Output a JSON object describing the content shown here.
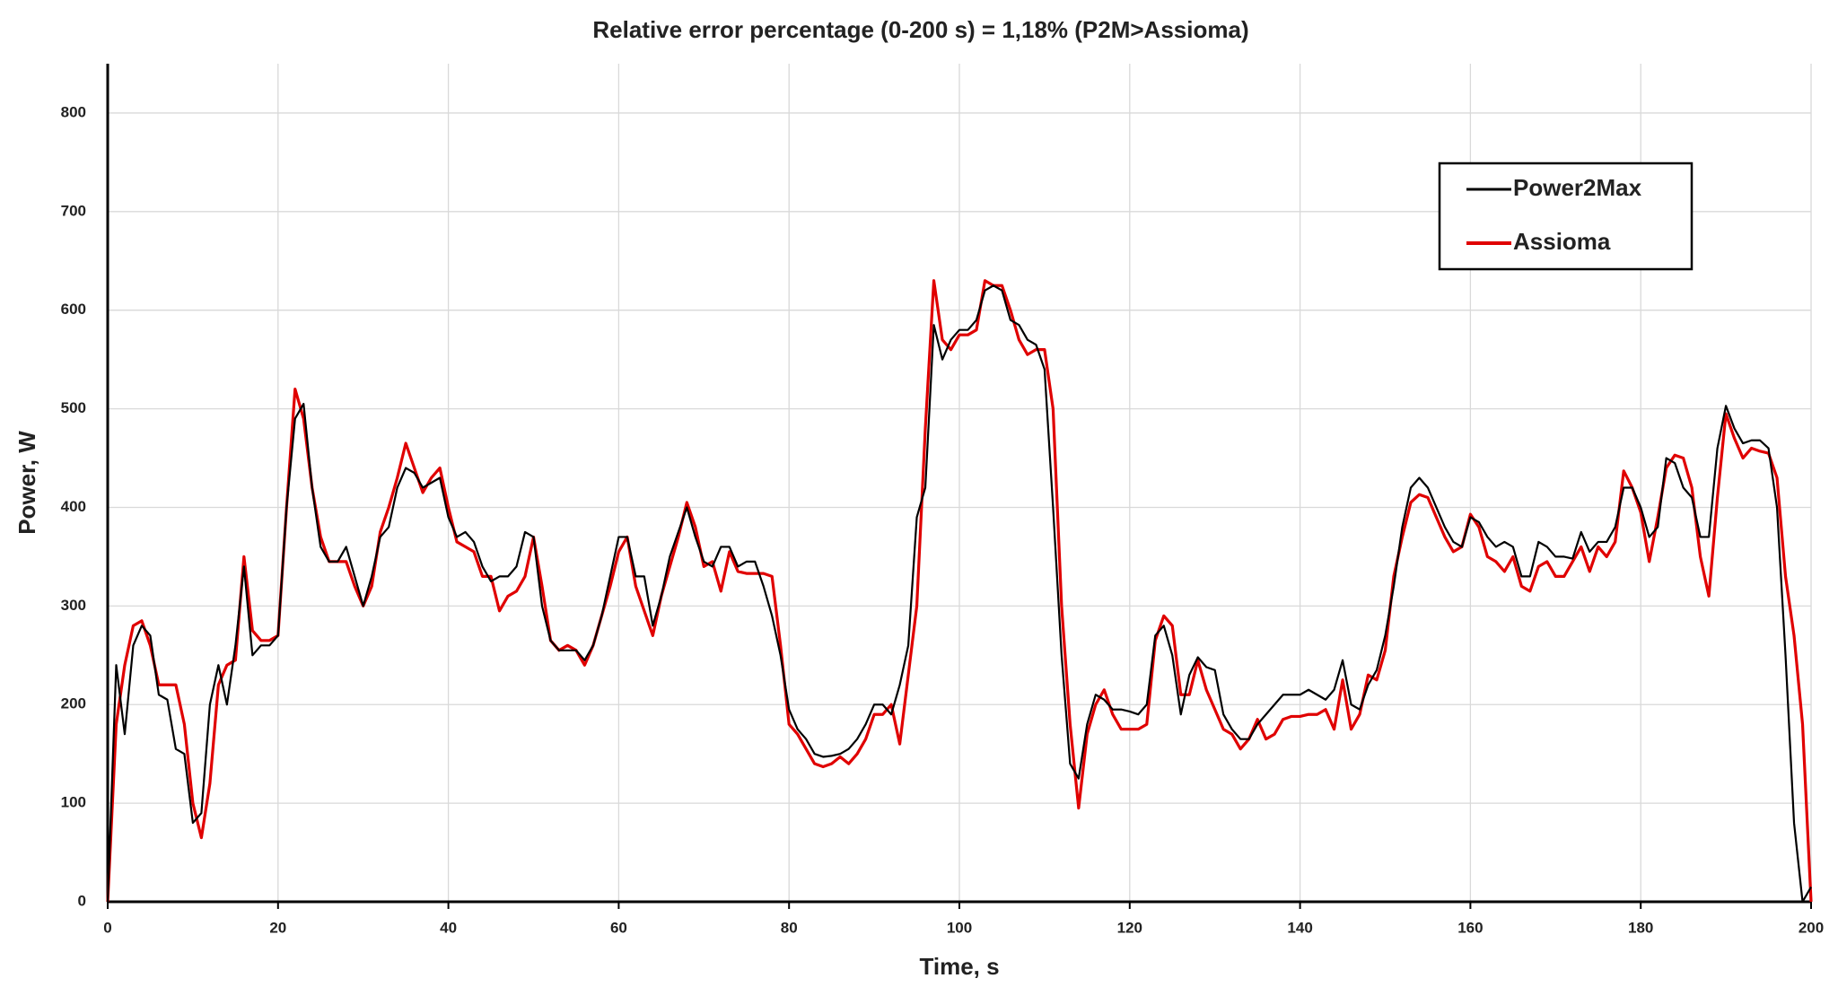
{
  "chart_data": {
    "type": "line",
    "title": "Relative error percentage (0-200 s) = 1,18% (P2M>Assioma)",
    "xlabel": "Time, s",
    "ylabel": "Power, W",
    "xlim": [
      0,
      200
    ],
    "xticks": [
      0,
      20,
      40,
      60,
      80,
      100,
      120,
      140,
      160,
      180,
      200
    ],
    "ylim": [
      0,
      850
    ],
    "yticks": [
      0,
      100,
      200,
      300,
      400,
      500,
      600,
      700,
      800
    ],
    "grid": true,
    "legend": "upper right",
    "x": [
      0,
      1,
      2,
      3,
      4,
      5,
      6,
      7,
      8,
      9,
      10,
      11,
      12,
      13,
      14,
      15,
      16,
      17,
      18,
      19,
      20,
      21,
      22,
      23,
      24,
      25,
      26,
      27,
      28,
      29,
      30,
      31,
      32,
      33,
      34,
      35,
      36,
      37,
      38,
      39,
      40,
      41,
      42,
      43,
      44,
      45,
      46,
      47,
      48,
      49,
      50,
      51,
      52,
      53,
      54,
      55,
      56,
      57,
      58,
      59,
      60,
      61,
      62,
      63,
      64,
      65,
      66,
      67,
      68,
      69,
      70,
      71,
      72,
      73,
      74,
      75,
      76,
      77,
      78,
      79,
      80,
      81,
      82,
      83,
      84,
      85,
      86,
      87,
      88,
      89,
      90,
      91,
      92,
      93,
      94,
      95,
      96,
      97,
      98,
      99,
      100,
      101,
      102,
      103,
      104,
      105,
      106,
      107,
      108,
      109,
      110,
      111,
      112,
      113,
      114,
      115,
      116,
      117,
      118,
      119,
      120,
      121,
      122,
      123,
      124,
      125,
      126,
      127,
      128,
      129,
      130,
      131,
      132,
      133,
      134,
      135,
      136,
      137,
      138,
      139,
      140,
      141,
      142,
      143,
      144,
      145,
      146,
      147,
      148,
      149,
      150,
      151,
      152,
      153,
      154,
      155,
      156,
      157,
      158,
      159,
      160,
      161,
      162,
      163,
      164,
      165,
      166,
      167,
      168,
      169,
      170,
      171,
      172,
      173,
      174,
      175,
      176,
      177,
      178,
      179,
      180,
      181,
      182,
      183,
      184,
      185,
      186,
      187,
      188,
      189,
      190,
      191,
      192,
      193,
      194,
      195,
      196,
      197,
      198,
      199,
      200
    ],
    "series": [
      {
        "name": "Power2Max",
        "color": "#000000",
        "values": [
          0,
          240,
          170,
          260,
          280,
          270,
          210,
          205,
          155,
          150,
          80,
          90,
          200,
          240,
          200,
          260,
          340,
          250,
          260,
          260,
          270,
          400,
          490,
          505,
          420,
          360,
          345,
          345,
          360,
          330,
          300,
          330,
          370,
          380,
          420,
          440,
          435,
          420,
          425,
          430,
          390,
          370,
          375,
          365,
          340,
          325,
          330,
          330,
          340,
          375,
          370,
          300,
          265,
          255,
          255,
          255,
          245,
          260,
          290,
          330,
          370,
          370,
          330,
          330,
          280,
          310,
          350,
          375,
          400,
          370,
          345,
          340,
          360,
          360,
          340,
          345,
          345,
          320,
          290,
          250,
          195,
          175,
          165,
          150,
          147,
          148,
          150,
          155,
          165,
          180,
          200,
          200,
          190,
          220,
          260,
          390,
          420,
          585,
          550,
          570,
          580,
          580,
          590,
          620,
          625,
          620,
          590,
          585,
          570,
          565,
          540,
          400,
          250,
          140,
          125,
          180,
          210,
          205,
          195,
          195,
          193,
          190,
          200,
          270,
          280,
          250,
          190,
          230,
          248,
          238,
          235,
          190,
          175,
          165,
          165,
          180,
          190,
          200,
          210,
          210,
          210,
          215,
          210,
          205,
          215,
          245,
          200,
          195,
          220,
          235,
          270,
          320,
          380,
          420,
          430,
          420,
          400,
          380,
          365,
          360,
          390,
          385,
          370,
          360,
          365,
          360,
          330,
          330,
          365,
          360,
          350,
          350,
          348,
          375,
          355,
          365,
          365,
          380,
          420,
          420,
          400,
          370,
          380,
          450,
          445,
          420,
          410,
          370,
          370,
          460,
          503,
          480,
          465,
          468,
          468,
          460,
          400,
          250,
          80,
          0,
          15
        ]
      },
      {
        "name": "Assioma",
        "color": "#e00000",
        "values": [
          0,
          180,
          240,
          280,
          285,
          260,
          220,
          220,
          220,
          180,
          100,
          65,
          120,
          220,
          240,
          245,
          350,
          275,
          265,
          265,
          270,
          400,
          520,
          490,
          420,
          370,
          345,
          345,
          345,
          320,
          300,
          320,
          375,
          400,
          430,
          465,
          440,
          415,
          430,
          440,
          400,
          365,
          360,
          355,
          330,
          330,
          295,
          310,
          315,
          330,
          370,
          320,
          265,
          255,
          260,
          255,
          240,
          260,
          290,
          320,
          355,
          370,
          320,
          295,
          270,
          310,
          340,
          370,
          405,
          380,
          340,
          345,
          315,
          355,
          335,
          333,
          333,
          333,
          330,
          260,
          180,
          170,
          155,
          140,
          137,
          140,
          147,
          140,
          150,
          165,
          190,
          190,
          200,
          160,
          230,
          300,
          480,
          630,
          570,
          560,
          575,
          575,
          580,
          630,
          625,
          625,
          600,
          570,
          555,
          560,
          560,
          500,
          300,
          180,
          95,
          170,
          200,
          215,
          190,
          175,
          175,
          175,
          180,
          265,
          290,
          280,
          210,
          210,
          245,
          215,
          195,
          175,
          170,
          155,
          165,
          185,
          165,
          170,
          185,
          188,
          188,
          190,
          190,
          195,
          175,
          225,
          175,
          190,
          230,
          225,
          255,
          330,
          370,
          405,
          413,
          410,
          390,
          370,
          355,
          360,
          393,
          380,
          350,
          345,
          335,
          350,
          320,
          315,
          340,
          345,
          330,
          330,
          345,
          360,
          335,
          360,
          350,
          365,
          437,
          420,
          395,
          345,
          390,
          440,
          453,
          450,
          420,
          350,
          310,
          410,
          495,
          470,
          450,
          460,
          457,
          455,
          430,
          330,
          270,
          180,
          0
        ]
      }
    ]
  }
}
